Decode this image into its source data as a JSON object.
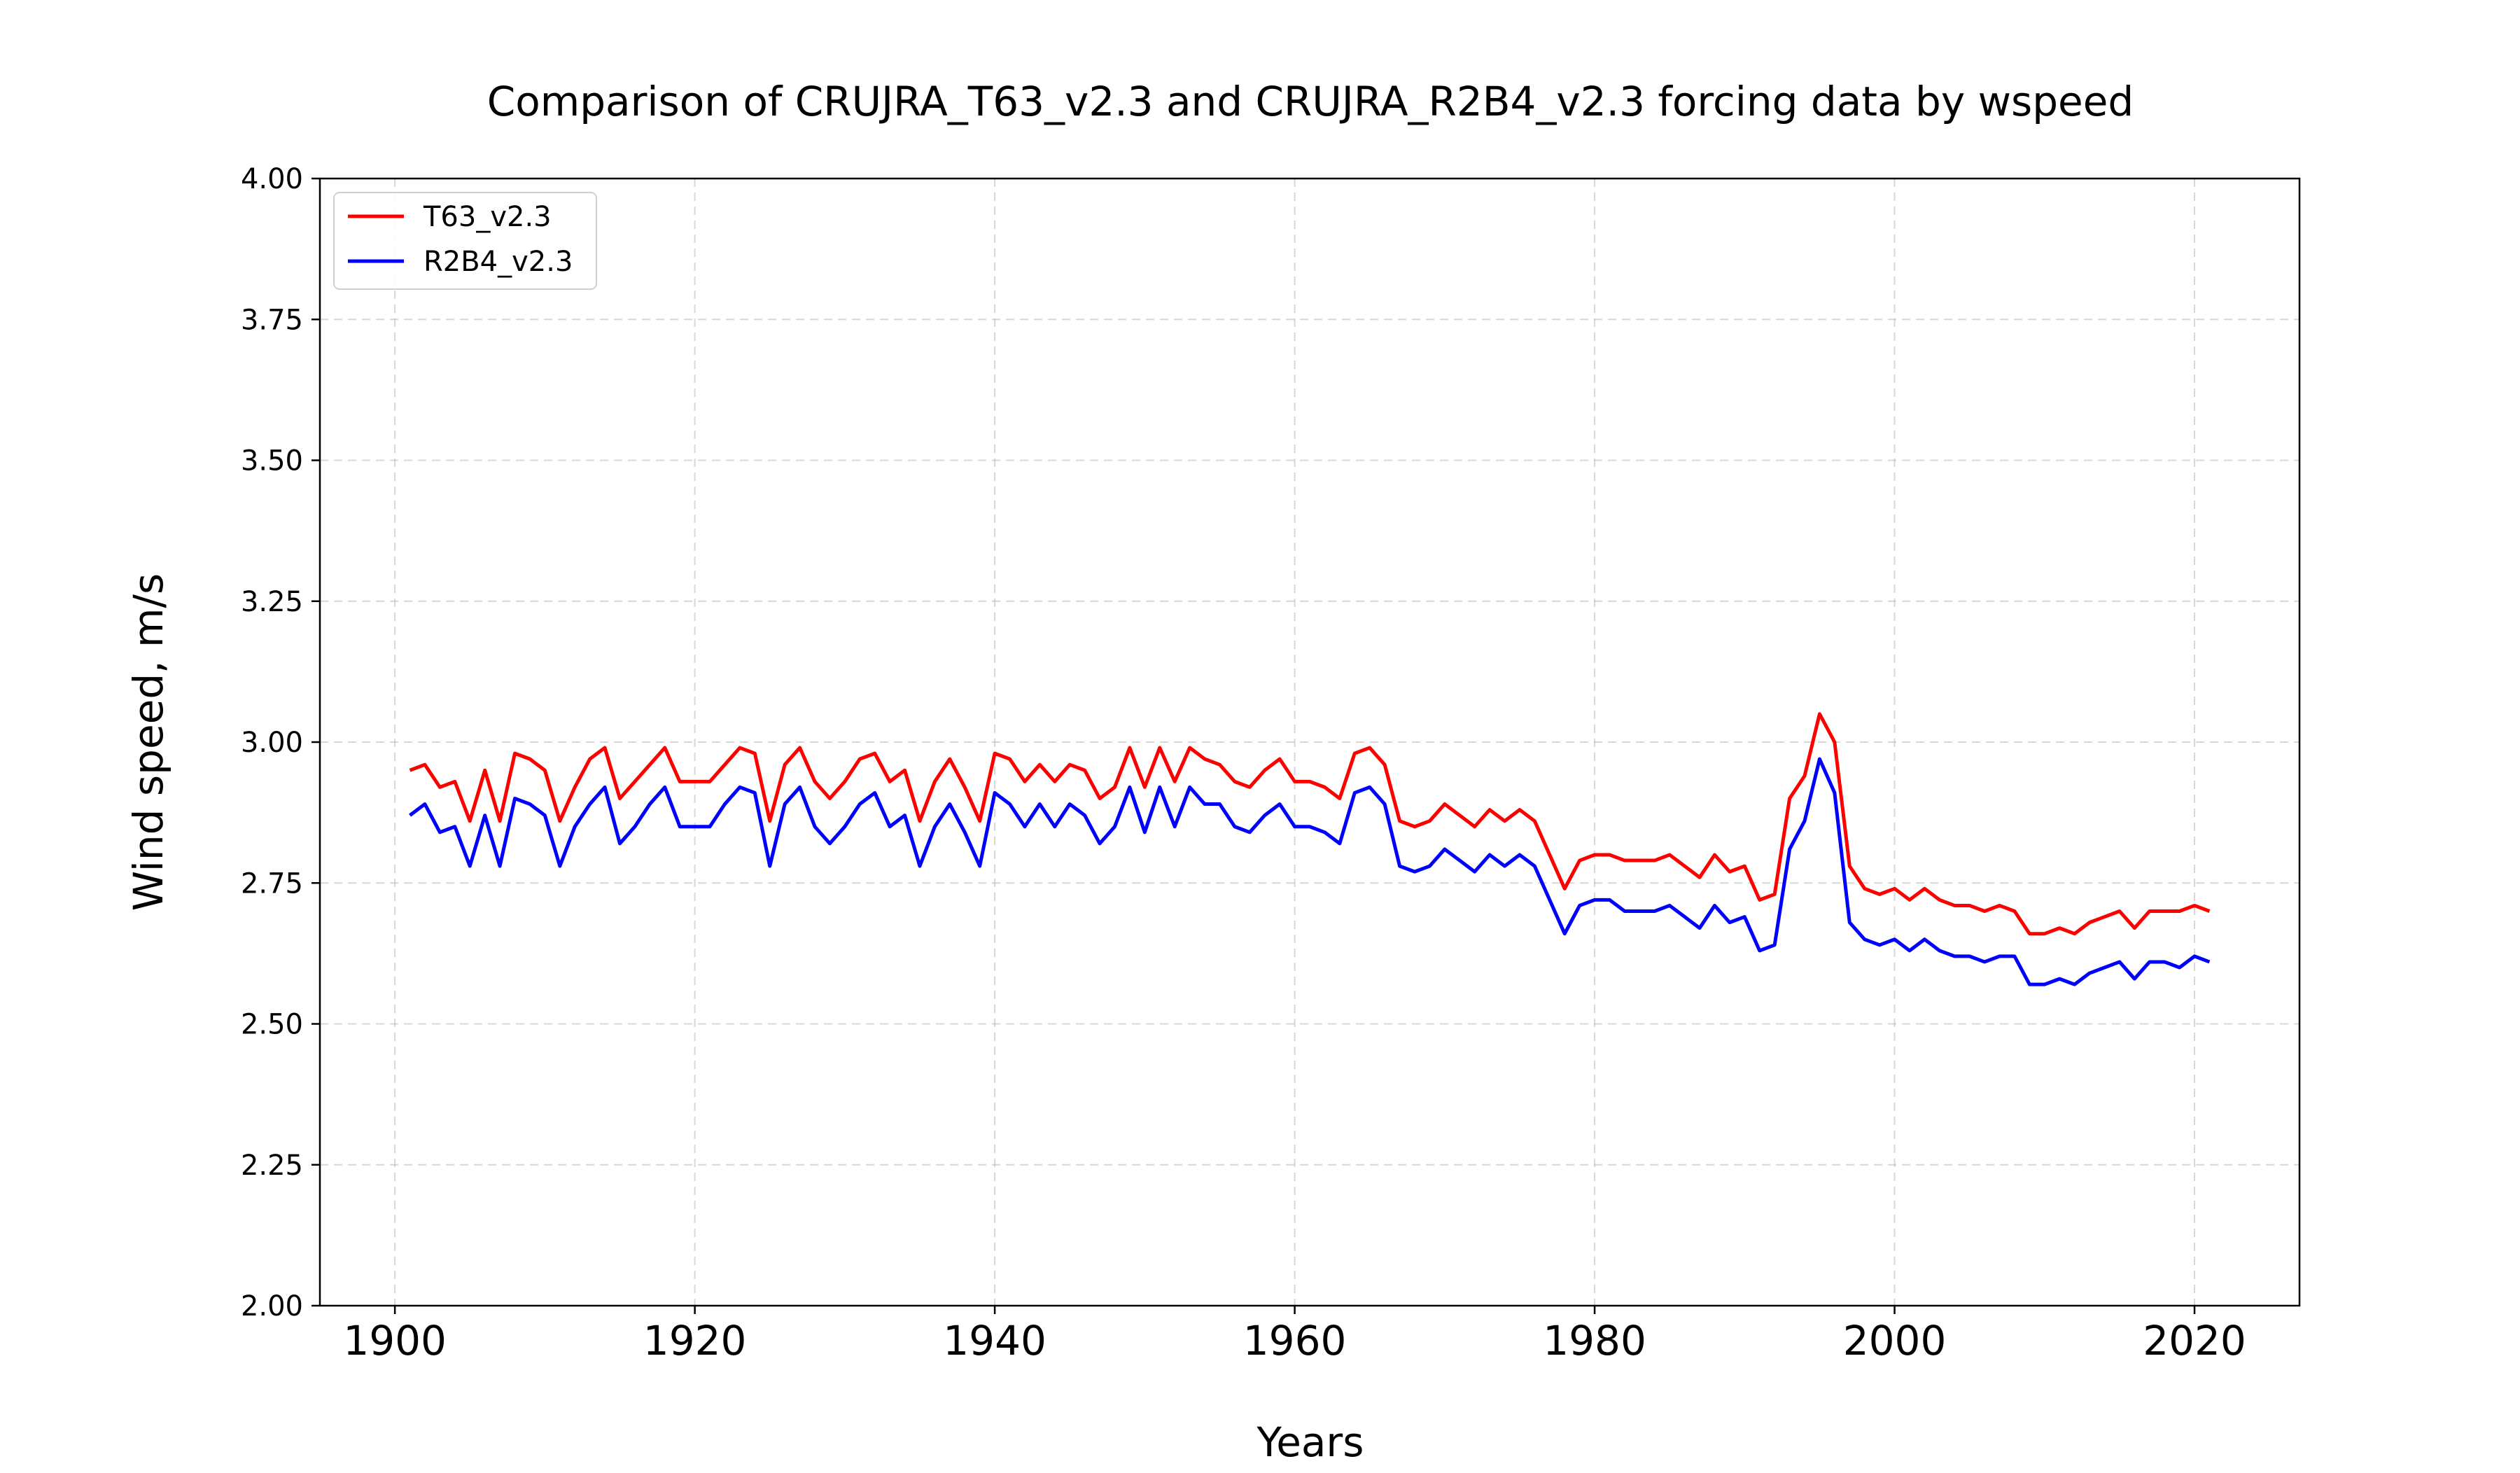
{
  "chart_data": {
    "type": "line",
    "title": "Comparison of CRUJRA_T63_v2.3 and CRUJRA_R2B4_v2.3 forcing data by wspeed",
    "xlabel": "Years",
    "ylabel": "Wind speed, m/s",
    "xlim": [
      1895,
      2027
    ],
    "ylim": [
      2.0,
      4.0
    ],
    "xticks": [
      1900,
      1920,
      1940,
      1960,
      1980,
      2000,
      2020
    ],
    "xtick_labels": [
      "1900",
      "1920",
      "1940",
      "1960",
      "1980",
      "2000",
      "2020"
    ],
    "yticks": [
      2.0,
      2.25,
      2.5,
      2.75,
      3.0,
      3.25,
      3.5,
      3.75,
      4.0
    ],
    "ytick_labels": [
      "2.00",
      "2.25",
      "2.50",
      "2.75",
      "3.00",
      "3.25",
      "3.50",
      "3.75",
      "4.00"
    ],
    "grid": true,
    "legend_position": "upper-left",
    "x": [
      1901,
      1902,
      1903,
      1904,
      1905,
      1906,
      1907,
      1908,
      1909,
      1910,
      1911,
      1912,
      1913,
      1914,
      1915,
      1916,
      1917,
      1918,
      1919,
      1920,
      1921,
      1922,
      1923,
      1924,
      1925,
      1926,
      1927,
      1928,
      1929,
      1930,
      1931,
      1932,
      1933,
      1934,
      1935,
      1936,
      1937,
      1938,
      1939,
      1940,
      1941,
      1942,
      1943,
      1944,
      1945,
      1946,
      1947,
      1948,
      1949,
      1950,
      1951,
      1952,
      1953,
      1954,
      1955,
      1956,
      1957,
      1958,
      1959,
      1960,
      1961,
      1962,
      1963,
      1964,
      1965,
      1966,
      1967,
      1968,
      1969,
      1970,
      1971,
      1972,
      1973,
      1974,
      1975,
      1976,
      1977,
      1978,
      1979,
      1980,
      1981,
      1982,
      1983,
      1984,
      1985,
      1986,
      1987,
      1988,
      1989,
      1990,
      1991,
      1992,
      1993,
      1994,
      1995,
      1996,
      1997,
      1998,
      1999,
      2000,
      2001,
      2002,
      2003,
      2004,
      2005,
      2006,
      2007,
      2008,
      2009,
      2010,
      2011,
      2012,
      2013,
      2014,
      2015,
      2016,
      2017,
      2018,
      2019,
      2020,
      2021
    ],
    "series": [
      {
        "name": "T63_v2.3",
        "color": "#ff0000",
        "values": [
          2.95,
          2.96,
          2.92,
          2.93,
          2.86,
          2.95,
          2.86,
          2.98,
          2.97,
          2.95,
          2.86,
          2.92,
          2.97,
          2.99,
          2.9,
          2.93,
          2.96,
          2.99,
          2.93,
          2.93,
          2.93,
          2.96,
          2.99,
          2.98,
          2.86,
          2.96,
          2.99,
          2.93,
          2.9,
          2.93,
          2.97,
          2.98,
          2.93,
          2.95,
          2.86,
          2.93,
          2.97,
          2.92,
          2.86,
          2.98,
          2.97,
          2.93,
          2.96,
          2.93,
          2.96,
          2.95,
          2.9,
          2.92,
          2.99,
          2.92,
          2.99,
          2.93,
          2.99,
          2.97,
          2.96,
          2.93,
          2.92,
          2.95,
          2.97,
          2.93,
          2.93,
          2.92,
          2.9,
          2.98,
          2.99,
          2.96,
          2.86,
          2.85,
          2.86,
          2.89,
          2.87,
          2.85,
          2.88,
          2.86,
          2.88,
          2.86,
          2.8,
          2.74,
          2.79,
          2.8,
          2.8,
          2.79,
          2.79,
          2.79,
          2.8,
          2.78,
          2.76,
          2.8,
          2.77,
          2.78,
          2.72,
          2.73,
          2.9,
          2.94,
          3.05,
          3.0,
          2.78,
          2.74,
          2.73,
          2.74,
          2.72,
          2.74,
          2.72,
          2.71,
          2.71,
          2.7,
          2.71,
          2.7,
          2.66,
          2.66,
          2.67,
          2.66,
          2.68,
          2.69,
          2.7,
          2.67,
          2.7,
          2.7,
          2.7,
          2.71,
          2.7
        ]
      },
      {
        "name": "R2B4_v2.3",
        "color": "#0000ff",
        "values": [
          2.87,
          2.89,
          2.84,
          2.85,
          2.78,
          2.87,
          2.78,
          2.9,
          2.89,
          2.87,
          2.78,
          2.85,
          2.89,
          2.92,
          2.82,
          2.85,
          2.89,
          2.92,
          2.85,
          2.85,
          2.85,
          2.89,
          2.92,
          2.91,
          2.78,
          2.89,
          2.92,
          2.85,
          2.82,
          2.85,
          2.89,
          2.91,
          2.85,
          2.87,
          2.78,
          2.85,
          2.89,
          2.84,
          2.78,
          2.91,
          2.89,
          2.85,
          2.89,
          2.85,
          2.89,
          2.87,
          2.82,
          2.85,
          2.92,
          2.84,
          2.92,
          2.85,
          2.92,
          2.89,
          2.89,
          2.85,
          2.84,
          2.87,
          2.89,
          2.85,
          2.85,
          2.84,
          2.82,
          2.91,
          2.92,
          2.89,
          2.78,
          2.77,
          2.78,
          2.81,
          2.79,
          2.77,
          2.8,
          2.78,
          2.8,
          2.78,
          2.72,
          2.66,
          2.71,
          2.72,
          2.72,
          2.7,
          2.7,
          2.7,
          2.71,
          2.69,
          2.67,
          2.71,
          2.68,
          2.69,
          2.63,
          2.64,
          2.81,
          2.86,
          2.97,
          2.91,
          2.68,
          2.65,
          2.64,
          2.65,
          2.63,
          2.65,
          2.63,
          2.62,
          2.62,
          2.61,
          2.62,
          2.62,
          2.57,
          2.57,
          2.58,
          2.57,
          2.59,
          2.6,
          2.61,
          2.58,
          2.61,
          2.61,
          2.6,
          2.62,
          2.61
        ]
      }
    ]
  }
}
